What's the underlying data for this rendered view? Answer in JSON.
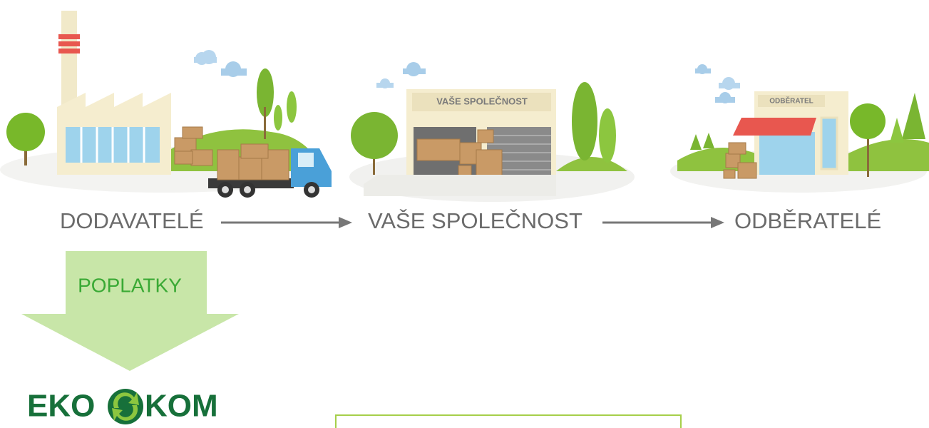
{
  "scene": {
    "company_sign": "VAŠE SPOLEČNOST",
    "customer_sign": "ODBĚRATEL"
  },
  "flow": {
    "steps": [
      "DODAVATELÉ",
      "VAŠE SPOLEČNOST",
      "ODBĚRATELÉ"
    ],
    "fees": "POPLATKY"
  },
  "logo": {
    "left": "EKO",
    "right": "KOM"
  }
}
